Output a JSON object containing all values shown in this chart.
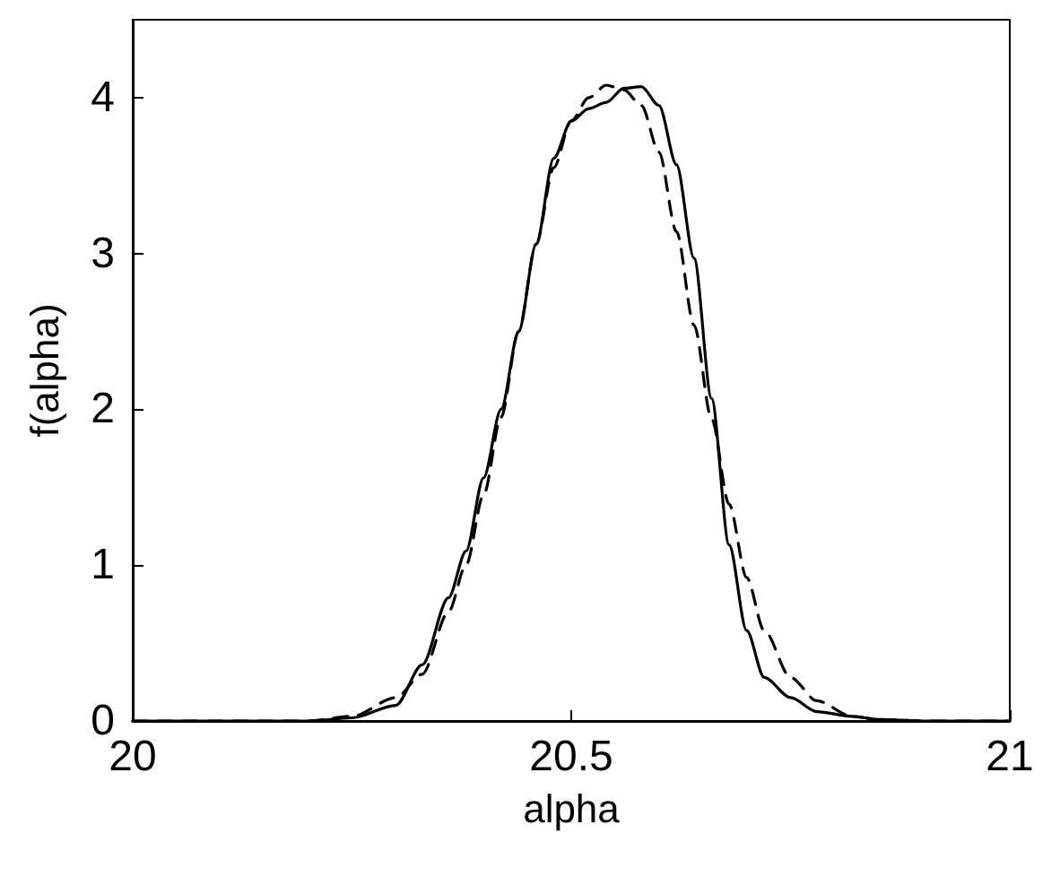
{
  "chart_data": {
    "type": "line",
    "xlabel": "alpha",
    "ylabel": "f(alpha)",
    "xlim": [
      20,
      21
    ],
    "xticks": [
      20,
      20.5,
      21
    ],
    "ylim": [
      0,
      4.5
    ],
    "yticks": [
      0,
      1,
      2,
      3,
      4
    ],
    "grid": false,
    "marker": "none",
    "series": [
      {
        "color": "#000000",
        "line_style": "solid",
        "x": [
          20,
          20.2,
          20.25,
          20.3,
          20.33,
          20.36,
          20.38,
          20.4,
          20.42,
          20.44,
          20.46,
          20.48,
          20.5,
          20.52,
          20.54,
          20.56,
          20.58,
          20.6,
          20.62,
          20.64,
          20.66,
          20.68,
          20.7,
          20.72,
          20.75,
          20.78,
          20.82,
          20.85,
          20.9,
          21
        ],
        "values": [
          0,
          0,
          0.02,
          0.1,
          0.36,
          0.79,
          1.09,
          1.56,
          2.0,
          2.5,
          3.06,
          3.61,
          3.85,
          3.93,
          3.97,
          4.06,
          4.07,
          3.95,
          3.57,
          2.97,
          2.07,
          1.13,
          0.58,
          0.28,
          0.15,
          0.06,
          0.03,
          0.01,
          0,
          0
        ]
      },
      {
        "color": "#000000",
        "line_style": "dashed",
        "x": [
          20,
          20.2,
          20.25,
          20.3,
          20.33,
          20.36,
          20.38,
          20.4,
          20.42,
          20.44,
          20.46,
          20.48,
          20.5,
          20.52,
          20.54,
          20.56,
          20.58,
          20.6,
          20.62,
          20.64,
          20.66,
          20.68,
          20.7,
          20.72,
          20.75,
          20.78,
          20.82,
          20.85,
          20.9,
          21
        ],
        "values": [
          0,
          0,
          0.03,
          0.15,
          0.3,
          0.7,
          1.0,
          1.45,
          1.95,
          2.5,
          3.06,
          3.55,
          3.85,
          4.0,
          4.08,
          4.05,
          3.95,
          3.65,
          3.14,
          2.54,
          1.94,
          1.39,
          0.92,
          0.58,
          0.28,
          0.13,
          0.03,
          0.01,
          0,
          0
        ]
      }
    ]
  }
}
